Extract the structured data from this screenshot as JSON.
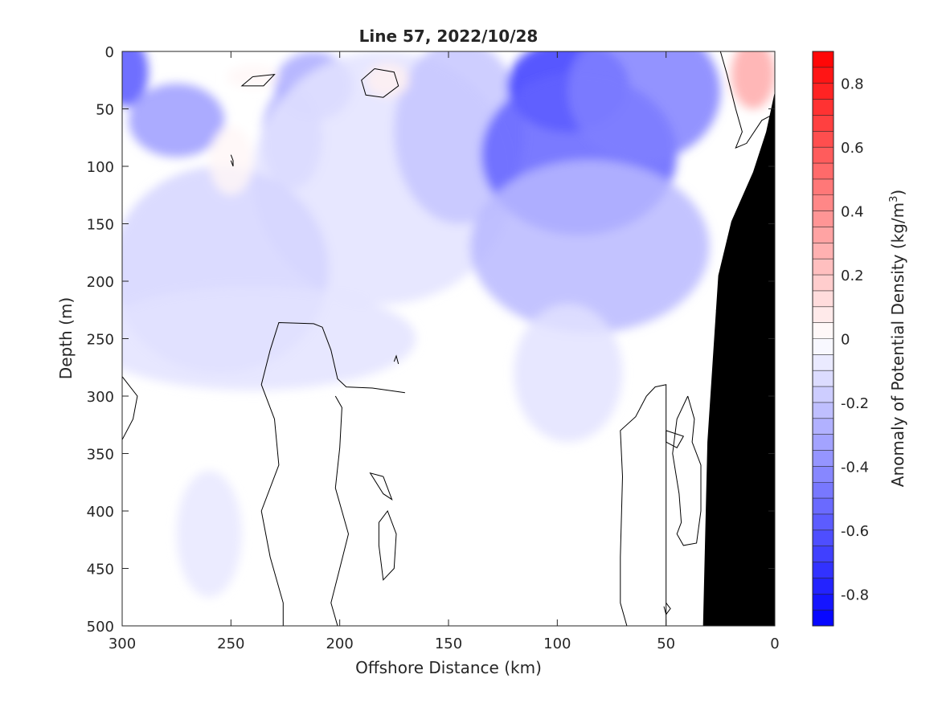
{
  "chart_data": {
    "type": "heatmap",
    "title": "Line 57, 2022/10/28",
    "xlabel": "Offshore Distance (km)",
    "ylabel": "Depth (m)",
    "colorbar_label": "Anomaly of Potential Density (kg/m",
    "colorbar_label_sup": "3",
    "colorbar_label_close": ")",
    "xlim": [
      300,
      0
    ],
    "ylim": [
      500,
      0
    ],
    "x_ticks": [
      300,
      250,
      200,
      150,
      100,
      50,
      0
    ],
    "x_tick_labels": [
      "300",
      "250",
      "200",
      "150",
      "100",
      "50",
      "0"
    ],
    "y_ticks": [
      0,
      50,
      100,
      150,
      200,
      250,
      300,
      350,
      400,
      450,
      500
    ],
    "y_tick_labels": [
      "0",
      "50",
      "100",
      "150",
      "200",
      "250",
      "300",
      "350",
      "400",
      "450",
      "500"
    ],
    "clim": [
      -0.9,
      0.9
    ],
    "color_levels": 36,
    "colorbar_ticks": [
      0.8,
      0.6,
      0.4,
      0.2,
      0,
      -0.2,
      -0.4,
      -0.6,
      -0.8
    ],
    "colorbar_tick_labels": [
      "0.8",
      "0.6",
      "0.4",
      "0.2",
      "0",
      "-0.2",
      "-0.4",
      "-0.6",
      "-0.8"
    ],
    "colormap": {
      "negative": "#0000ff",
      "zero": "#ffffff",
      "positive": "#ff0000"
    },
    "bathymetry_color": "#000000",
    "bathymetry_profile": [
      {
        "x": 33,
        "depth": 500
      },
      {
        "x": 31,
        "depth": 340
      },
      {
        "x": 26,
        "depth": 195
      },
      {
        "x": 20,
        "depth": 148
      },
      {
        "x": 10,
        "depth": 105
      },
      {
        "x": 4,
        "depth": 70
      },
      {
        "x": 0,
        "depth": 35
      }
    ],
    "anomaly_features": [
      {
        "x": 298,
        "depth": 18,
        "rx": 10,
        "ry": 30,
        "value": -0.6
      },
      {
        "x": 275,
        "depth": 60,
        "rx": 22,
        "ry": 32,
        "value": -0.35
      },
      {
        "x": 222,
        "depth": 75,
        "rx": 14,
        "ry": 45,
        "value": -0.3
      },
      {
        "x": 212,
        "depth": 30,
        "rx": 18,
        "ry": 30,
        "value": -0.3
      },
      {
        "x": 180,
        "depth": 110,
        "rx": 60,
        "ry": 110,
        "value": -0.1
      },
      {
        "x": 145,
        "depth": 70,
        "rx": 30,
        "ry": 80,
        "value": -0.2
      },
      {
        "x": 95,
        "depth": 30,
        "rx": 28,
        "ry": 40,
        "value": -0.7
      },
      {
        "x": 90,
        "depth": 90,
        "rx": 45,
        "ry": 70,
        "value": -0.55
      },
      {
        "x": 85,
        "depth": 170,
        "rx": 55,
        "ry": 75,
        "value": -0.25
      },
      {
        "x": 95,
        "depth": 280,
        "rx": 25,
        "ry": 60,
        "value": -0.1
      },
      {
        "x": 60,
        "depth": 35,
        "rx": 35,
        "ry": 60,
        "value": -0.45
      },
      {
        "x": 255,
        "depth": 190,
        "rx": 50,
        "ry": 90,
        "value": -0.15
      },
      {
        "x": 240,
        "depth": 250,
        "rx": 75,
        "ry": 45,
        "value": -0.1
      },
      {
        "x": 260,
        "depth": 420,
        "rx": 15,
        "ry": 55,
        "value": -0.08
      },
      {
        "x": 10,
        "depth": 20,
        "rx": 10,
        "ry": 30,
        "value": 0.3
      },
      {
        "x": 178,
        "depth": 25,
        "rx": 10,
        "ry": 15,
        "value": 0.05
      },
      {
        "x": 250,
        "depth": 95,
        "rx": 10,
        "ry": 30,
        "value": 0.03
      },
      {
        "x": 240,
        "depth": 22,
        "rx": 12,
        "ry": 10,
        "value": 0.03
      }
    ],
    "zero_contours": [
      [
        [
          170,
          297
        ],
        [
          185,
          293
        ],
        [
          197,
          292
        ],
        [
          201,
          285
        ],
        [
          204,
          260
        ],
        [
          208,
          240
        ],
        [
          212,
          237
        ],
        [
          228,
          236
        ],
        [
          232,
          260
        ],
        [
          236,
          290
        ],
        [
          230,
          320
        ],
        [
          228,
          360
        ],
        [
          236,
          400
        ],
        [
          232,
          440
        ],
        [
          226,
          480
        ],
        [
          226,
          500
        ]
      ],
      [
        [
          201,
          500
        ],
        [
          204,
          480
        ],
        [
          200,
          450
        ],
        [
          196,
          420
        ],
        [
          202,
          380
        ],
        [
          200,
          345
        ],
        [
          199,
          310
        ],
        [
          202,
          300
        ]
      ],
      [
        [
          40,
          300
        ],
        [
          45,
          320
        ],
        [
          47,
          350
        ],
        [
          44,
          385
        ],
        [
          43,
          410
        ],
        [
          45,
          420
        ],
        [
          42,
          430
        ],
        [
          36,
          428
        ],
        [
          34,
          400
        ],
        [
          34,
          360
        ],
        [
          38,
          340
        ],
        [
          37,
          320
        ],
        [
          40,
          300
        ]
      ],
      [
        [
          59,
          300
        ],
        [
          55,
          292
        ],
        [
          50,
          290
        ],
        [
          50,
          500
        ]
      ],
      [
        [
          68,
          500
        ],
        [
          71,
          480
        ],
        [
          71,
          440
        ],
        [
          70,
          370
        ],
        [
          71,
          330
        ],
        [
          64,
          318
        ],
        [
          59,
          300
        ]
      ],
      [
        [
          180,
          370
        ],
        [
          186,
          367
        ],
        [
          180,
          385
        ],
        [
          176,
          390
        ],
        [
          180,
          370
        ]
      ],
      [
        [
          182,
          410
        ],
        [
          178,
          400
        ],
        [
          174,
          420
        ],
        [
          175,
          450
        ],
        [
          180,
          460
        ],
        [
          182,
          430
        ],
        [
          182,
          410
        ]
      ],
      [
        [
          300,
          283
        ],
        [
          293,
          300
        ],
        [
          295,
          320
        ],
        [
          300,
          338
        ]
      ],
      [
        [
          50,
          330
        ],
        [
          42,
          335
        ],
        [
          45,
          345
        ],
        [
          50,
          340
        ],
        [
          50,
          330
        ]
      ],
      [
        [
          240,
          22
        ],
        [
          230,
          20
        ],
        [
          235,
          30
        ],
        [
          245,
          30
        ],
        [
          240,
          22
        ]
      ],
      [
        [
          184,
          15
        ],
        [
          175,
          18
        ],
        [
          173,
          30
        ],
        [
          180,
          40
        ],
        [
          188,
          38
        ],
        [
          190,
          25
        ],
        [
          184,
          15
        ]
      ],
      [
        [
          250,
          90
        ],
        [
          249,
          95
        ],
        [
          249,
          100
        ],
        [
          250,
          95
        ]
      ],
      [
        [
          25,
          0
        ],
        [
          22,
          20
        ],
        [
          18,
          50
        ],
        [
          15,
          70
        ],
        [
          18,
          84
        ],
        [
          13,
          80
        ],
        [
          6,
          60
        ],
        [
          1,
          55
        ]
      ],
      [
        [
          27,
          225
        ],
        [
          24,
          230
        ],
        [
          22,
          250
        ]
      ],
      [
        [
          175,
          270
        ],
        [
          174,
          265
        ],
        [
          173,
          272
        ]
      ],
      [
        [
          50,
          480
        ],
        [
          48,
          485
        ],
        [
          50,
          490
        ],
        [
          51,
          483
        ]
      ]
    ]
  }
}
